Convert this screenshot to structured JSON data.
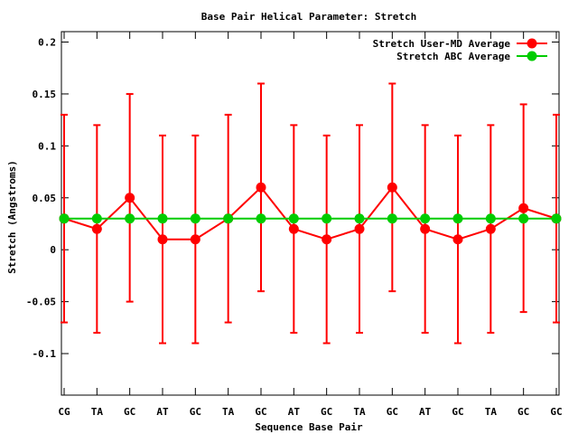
{
  "chart_data": {
    "type": "line",
    "title": "Base Pair Helical Parameter: Stretch",
    "xlabel": "Sequence Base Pair",
    "ylabel": "Stretch (Angstroms)",
    "categories": [
      "CG",
      "TA",
      "GC",
      "AT",
      "GC",
      "TA",
      "GC",
      "AT",
      "GC",
      "TA",
      "GC",
      "AT",
      "GC",
      "TA",
      "GC",
      "GC"
    ],
    "ylim": [
      -0.14,
      0.21
    ],
    "yticks": [
      -0.1,
      -0.05,
      0,
      0.05,
      0.1,
      0.15,
      0.2
    ],
    "ytick_labels": [
      "-0.1",
      "-0.05",
      "0",
      "0.05",
      "0.1",
      "0.15",
      "0.2"
    ],
    "grid": false,
    "legend_position": "top-right",
    "series": [
      {
        "name": "Stretch User-MD Average",
        "color": "#ff0000",
        "values": [
          0.03,
          0.02,
          0.05,
          0.01,
          0.01,
          0.03,
          0.06,
          0.02,
          0.01,
          0.02,
          0.06,
          0.02,
          0.01,
          0.02,
          0.04,
          0.03
        ],
        "error": [
          0.1,
          0.1,
          0.1,
          0.1,
          0.1,
          0.1,
          0.1,
          0.1,
          0.1,
          0.1,
          0.1,
          0.1,
          0.1,
          0.1,
          0.1,
          0.1
        ]
      },
      {
        "name": "Stretch ABC Average",
        "color": "#00cc00",
        "values": [
          0.03,
          0.03,
          0.03,
          0.03,
          0.03,
          0.03,
          0.03,
          0.03,
          0.03,
          0.03,
          0.03,
          0.03,
          0.03,
          0.03,
          0.03,
          0.03
        ]
      }
    ]
  }
}
